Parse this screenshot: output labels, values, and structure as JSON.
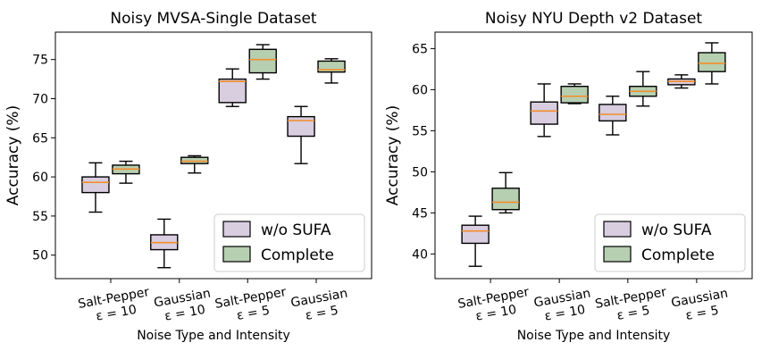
{
  "colors": {
    "wo_sufa_fill": "#d9cde0",
    "complete_fill": "#b6cfb0",
    "median": "#f28e2b",
    "edge": "#000000"
  },
  "chart_data": [
    {
      "type": "box",
      "title": "Noisy MVSA-Single Dataset",
      "xlabel": "Noise Type and Intensity",
      "ylabel": "Accuracy (%)",
      "ylim": [
        47.0,
        78.5
      ],
      "yticks": [
        50,
        55,
        60,
        65,
        70,
        75
      ],
      "categories": [
        {
          "line1": "Salt-Pepper",
          "line2": "ε = 10"
        },
        {
          "line1": "Gaussian",
          "line2": "ε = 10"
        },
        {
          "line1": "Salt-Pepper",
          "line2": "ε = 5"
        },
        {
          "line1": "Gaussian",
          "line2": "ε = 5"
        }
      ],
      "legend": {
        "position": "lower-right",
        "entries": [
          "w/o SUFA",
          "Complete"
        ]
      },
      "series": [
        {
          "name": "w/o SUFA",
          "boxes": [
            {
              "whislo": 55.5,
              "q1": 58.0,
              "med": 59.3,
              "q3": 60.0,
              "whishi": 61.8
            },
            {
              "whislo": 48.4,
              "q1": 50.7,
              "med": 51.6,
              "q3": 52.6,
              "whishi": 54.6
            },
            {
              "whislo": 69.0,
              "q1": 69.5,
              "med": 72.2,
              "q3": 72.5,
              "whishi": 73.8
            },
            {
              "whislo": 61.7,
              "q1": 65.2,
              "med": 67.2,
              "q3": 67.7,
              "whishi": 69.0
            }
          ]
        },
        {
          "name": "Complete",
          "boxes": [
            {
              "whislo": 59.2,
              "q1": 60.4,
              "med": 61.0,
              "q3": 61.5,
              "whishi": 62.0
            },
            {
              "whislo": 60.5,
              "q1": 61.7,
              "med": 62.0,
              "q3": 62.5,
              "whishi": 62.7
            },
            {
              "whislo": 72.5,
              "q1": 73.3,
              "med": 75.0,
              "q3": 76.3,
              "whishi": 76.9
            },
            {
              "whislo": 72.0,
              "q1": 73.4,
              "med": 73.7,
              "q3": 74.8,
              "whishi": 75.1
            }
          ]
        }
      ]
    },
    {
      "type": "box",
      "title": "Noisy NYU Depth v2 Dataset",
      "xlabel": "Noise Type and Intensity",
      "ylabel": "Accuracy (%)",
      "ylim": [
        37.0,
        67.0
      ],
      "yticks": [
        40,
        45,
        50,
        55,
        60,
        65
      ],
      "categories": [
        {
          "line1": "Salt-Pepper",
          "line2": "ε = 10"
        },
        {
          "line1": "Gaussian",
          "line2": "ε = 10"
        },
        {
          "line1": "Salt-Pepper",
          "line2": "ε = 5"
        },
        {
          "line1": "Gaussian",
          "line2": "ε = 5"
        }
      ],
      "legend": {
        "position": "lower-right",
        "entries": [
          "w/o SUFA",
          "Complete"
        ]
      },
      "series": [
        {
          "name": "w/o SUFA",
          "boxes": [
            {
              "whislo": 38.5,
              "q1": 41.3,
              "med": 42.8,
              "q3": 43.5,
              "whishi": 44.6
            },
            {
              "whislo": 54.3,
              "q1": 55.8,
              "med": 57.4,
              "q3": 58.5,
              "whishi": 60.7
            },
            {
              "whislo": 54.5,
              "q1": 56.2,
              "med": 57.0,
              "q3": 58.2,
              "whishi": 59.2
            },
            {
              "whislo": 60.2,
              "q1": 60.6,
              "med": 61.0,
              "q3": 61.3,
              "whishi": 61.8
            }
          ]
        },
        {
          "name": "Complete",
          "boxes": [
            {
              "whislo": 45.0,
              "q1": 45.4,
              "med": 46.3,
              "q3": 48.0,
              "whishi": 49.9
            },
            {
              "whislo": 58.3,
              "q1": 58.4,
              "med": 59.2,
              "q3": 60.4,
              "whishi": 60.7
            },
            {
              "whislo": 58.0,
              "q1": 59.2,
              "med": 59.8,
              "q3": 60.4,
              "whishi": 62.2
            },
            {
              "whislo": 60.7,
              "q1": 62.2,
              "med": 63.2,
              "q3": 64.5,
              "whishi": 65.7
            }
          ]
        }
      ]
    }
  ]
}
